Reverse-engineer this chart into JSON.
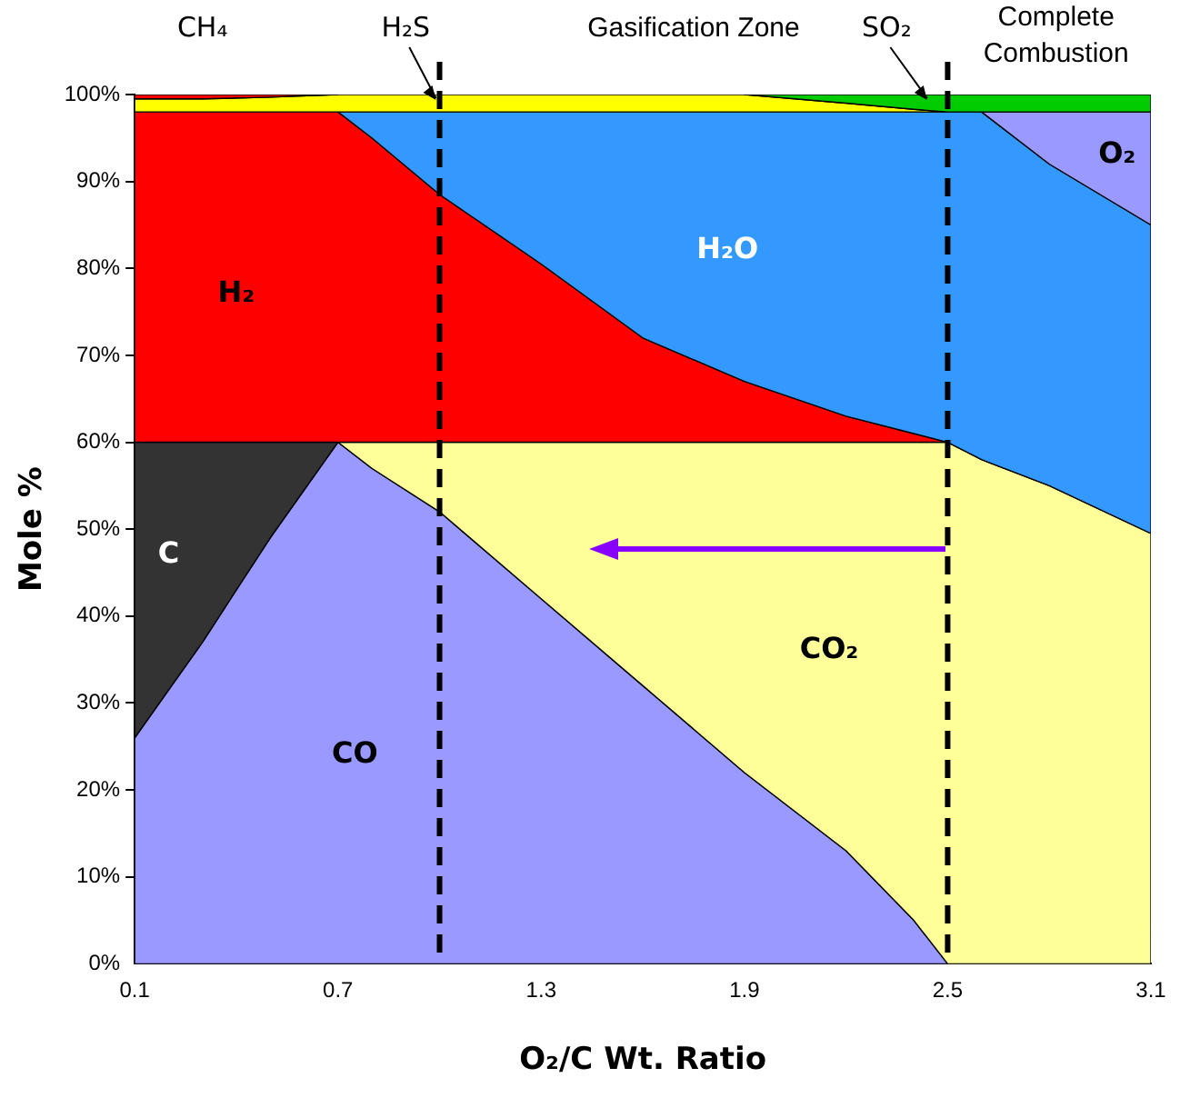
{
  "chart_data": {
    "type": "area",
    "stacked": true,
    "xlabel": "O₂/C Wt. Ratio",
    "ylabel": "Mole %",
    "x": [
      0.1,
      0.3,
      0.5,
      0.7,
      0.8,
      1.0,
      1.3,
      1.6,
      1.9,
      2.2,
      2.4,
      2.5,
      2.6,
      2.8,
      3.1
    ],
    "series": [
      {
        "name": "CO",
        "color": "#9999ff",
        "values": [
          26,
          37,
          49,
          60,
          57,
          52,
          42,
          32,
          22,
          13,
          5,
          0,
          null,
          null,
          null
        ]
      },
      {
        "name": "C",
        "color": "#333333",
        "values": [
          34,
          23,
          11,
          0,
          null,
          null,
          null,
          null,
          null,
          null,
          null,
          null,
          null,
          null,
          null
        ]
      },
      {
        "name": "CO₂",
        "color": "#ffff99",
        "values": [
          null,
          null,
          null,
          0,
          3,
          8,
          18,
          28,
          38,
          47,
          55,
          60,
          58,
          55,
          49.5
        ]
      },
      {
        "name": "H₂",
        "color": "#ff0000",
        "values": [
          38,
          38,
          38,
          38,
          35,
          28.5,
          20.5,
          12,
          7,
          3,
          1,
          0,
          null,
          null,
          null
        ]
      },
      {
        "name": "H₂O",
        "color": "#3399ff",
        "values": [
          null,
          null,
          null,
          0,
          3,
          9.5,
          17.5,
          26,
          31,
          35,
          37,
          38,
          40,
          37,
          35.5
        ]
      },
      {
        "name": "O₂",
        "color": "#9999ff",
        "values": [
          null,
          null,
          null,
          null,
          null,
          null,
          null,
          null,
          null,
          null,
          null,
          null,
          0,
          6,
          13
        ]
      },
      {
        "name": "H₂S",
        "color": "#ffff00",
        "values": [
          1.5,
          1.5,
          1.7,
          2,
          2,
          2,
          2,
          2,
          2,
          1,
          0.3,
          0,
          null,
          null,
          null
        ]
      },
      {
        "name": "CH₄",
        "color": "#ff0000",
        "values": [
          0.5,
          0.5,
          0.3,
          0,
          null,
          null,
          null,
          null,
          null,
          null,
          null,
          null,
          null,
          null,
          null
        ]
      },
      {
        "name": "SO₂",
        "color": "#00cc00",
        "values": [
          null,
          null,
          null,
          null,
          null,
          null,
          null,
          null,
          0,
          1,
          1.7,
          2,
          2,
          2,
          2
        ]
      }
    ],
    "xlim": [
      0.1,
      3.1
    ],
    "xticks": [
      0.1,
      0.7,
      1.3,
      1.9,
      2.5,
      3.1
    ],
    "ylim": [
      0,
      100
    ],
    "yticks": [
      {
        "value": 0,
        "label": "0%"
      },
      {
        "value": 10,
        "label": "10%"
      },
      {
        "value": 20,
        "label": "20%"
      },
      {
        "value": 30,
        "label": "30%"
      },
      {
        "value": 40,
        "label": "40%"
      },
      {
        "value": 50,
        "label": "50%"
      },
      {
        "value": 60,
        "label": "60%"
      },
      {
        "value": 70,
        "label": "70%"
      },
      {
        "value": 80,
        "label": "80%"
      },
      {
        "value": 90,
        "label": "90%"
      },
      {
        "value": 100,
        "label": "100%"
      }
    ],
    "ref_lines": [
      {
        "axis": "x",
        "value": 1.0,
        "color": "#000000",
        "line_style": "dashed"
      },
      {
        "axis": "x",
        "value": 2.5,
        "color": "#000000",
        "line_style": "dashed"
      }
    ],
    "annotations": [
      "Gasification Zone",
      "Complete Combustion"
    ],
    "grid": false,
    "legend": false
  }
}
